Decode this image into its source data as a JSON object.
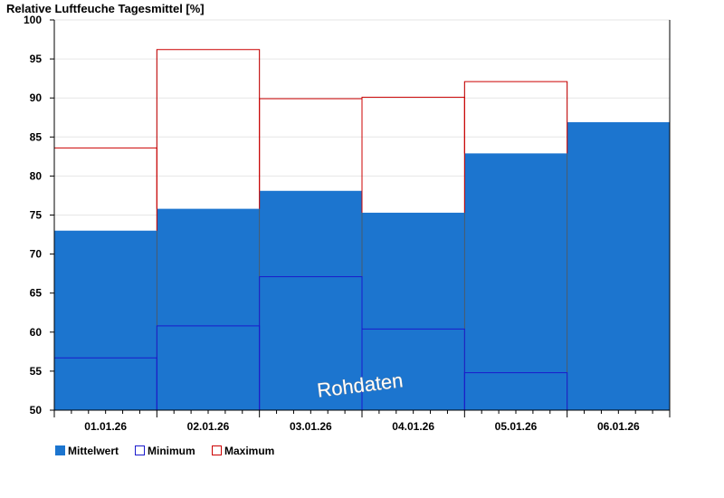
{
  "chart_data": {
    "type": "bar",
    "title": "Relative Luftfeuche Tagesmittel [%]",
    "categories": [
      "01.01.26",
      "02.01.26",
      "03.01.26",
      "04.01.26",
      "05.01.26",
      "06.01.26"
    ],
    "series": [
      {
        "name": "Mittelwert",
        "values": [
          73.0,
          75.8,
          78.1,
          75.3,
          82.9,
          86.9
        ]
      },
      {
        "name": "Minimum",
        "values": [
          56.7,
          60.8,
          67.1,
          60.4,
          54.8,
          null
        ]
      },
      {
        "name": "Maximum",
        "values": [
          83.6,
          96.2,
          89.9,
          90.1,
          92.1,
          null
        ]
      }
    ],
    "ylim": [
      50,
      100
    ],
    "yticks": [
      50,
      55,
      60,
      65,
      70,
      75,
      80,
      85,
      90,
      95,
      100
    ],
    "grid": true,
    "legend": "bottom-left",
    "watermark": "Rohdaten",
    "colors": {
      "mittelwert": "#1c75cf",
      "minimum": "#1a1acc",
      "maximum": "#cc0000"
    }
  }
}
